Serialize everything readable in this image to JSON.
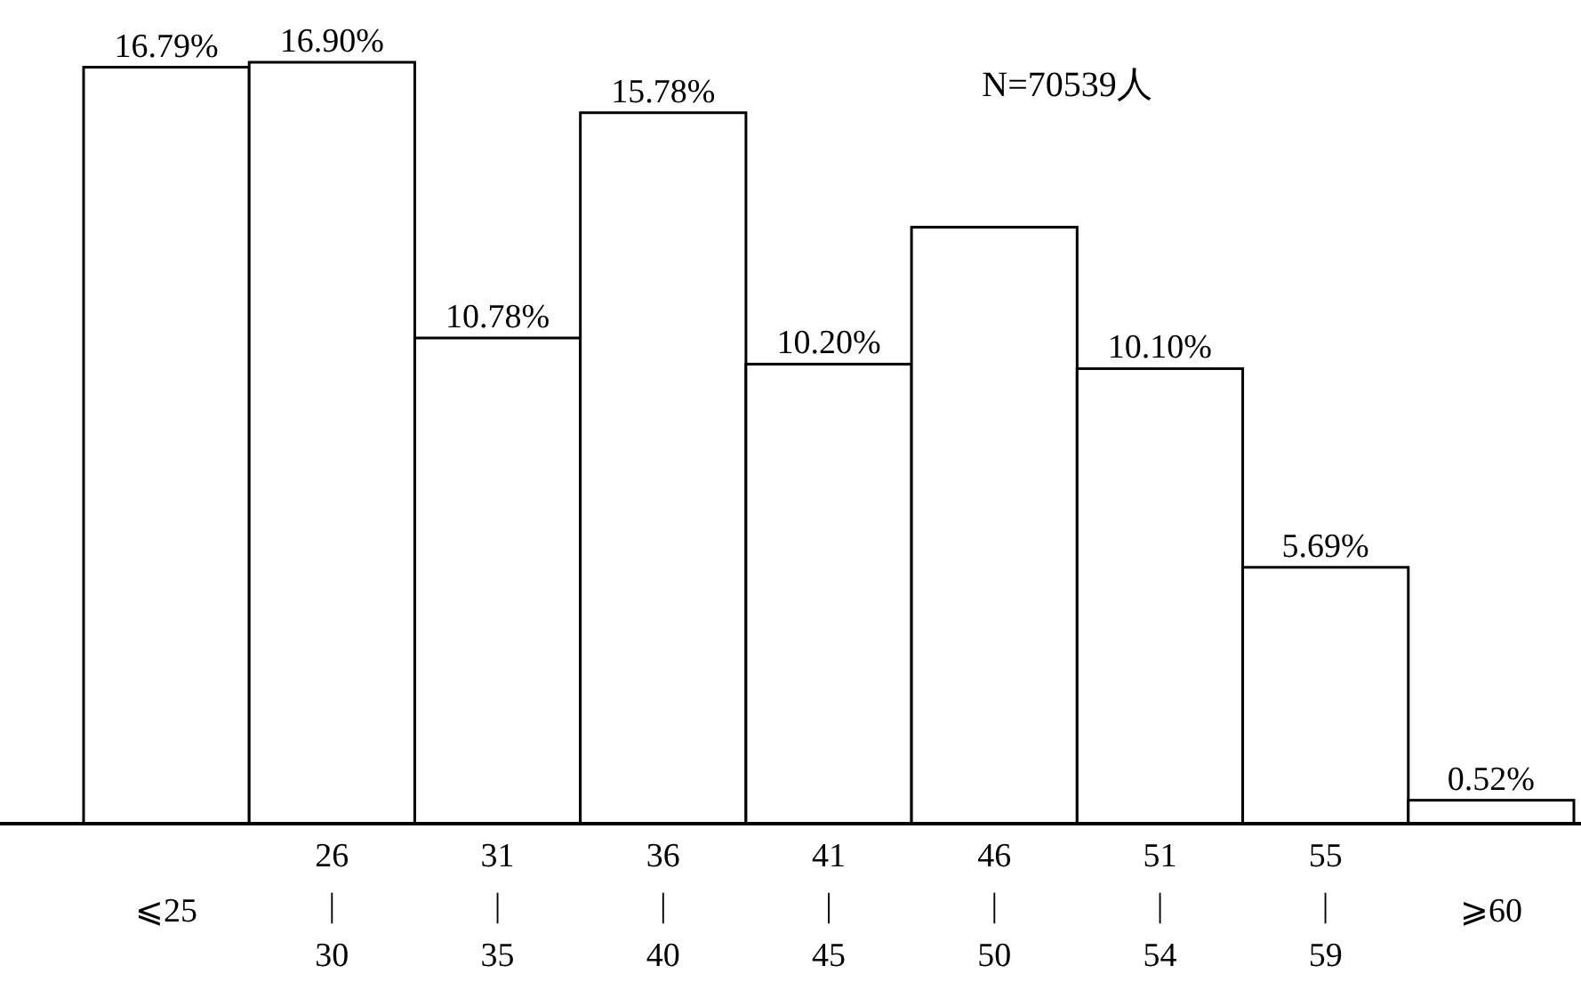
{
  "chart_data": {
    "type": "bar",
    "categories": [
      "⩽25",
      "26\n|\n30",
      "31\n|\n35",
      "36\n|\n40",
      "41\n|\n45",
      "46\n|\n50",
      "51\n|\n54",
      "55\n|\n59",
      "⩾60"
    ],
    "values": [
      16.79,
      16.9,
      10.78,
      15.78,
      10.2,
      13.24,
      10.1,
      5.69,
      0.52
    ],
    "value_labels": [
      "16.79%",
      "16.90%",
      "10.78%",
      "15.78%",
      "10.20%",
      null,
      "10.10%",
      "5.69%",
      "0.52%"
    ],
    "color": "#ffffff",
    "annotations": [
      "N=70539人"
    ]
  }
}
